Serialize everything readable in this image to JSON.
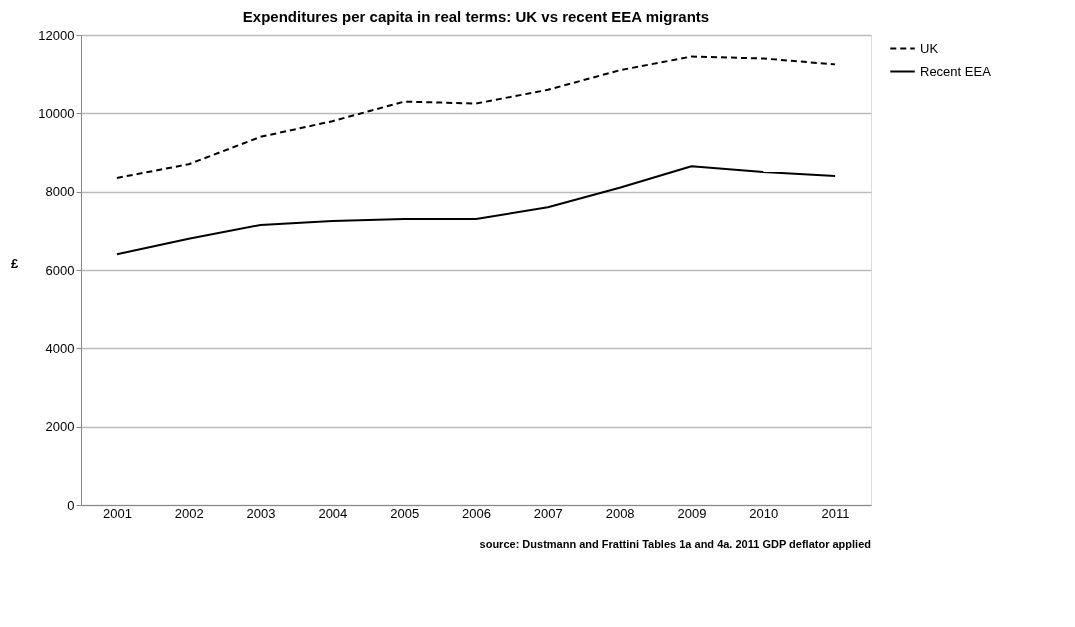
{
  "chart_data": {
    "type": "line",
    "title": "Expenditures per capita in real terms: UK vs recent EEA migrants",
    "ylabel": "£",
    "categories": [
      "2001",
      "2002",
      "2003",
      "2004",
      "2005",
      "2006",
      "2007",
      "2008",
      "2009",
      "2010",
      "2011"
    ],
    "series": [
      {
        "name": "UK",
        "color": "#000000",
        "line_style": "dashed",
        "values": [
          8350,
          8700,
          9400,
          9800,
          10300,
          10250,
          10600,
          11100,
          11450,
          11400,
          11250
        ]
      },
      {
        "name": "Recent EEA",
        "color": "#000000",
        "line_style": "solid",
        "values": [
          6400,
          6800,
          7150,
          7250,
          7300,
          7300,
          7600,
          8100,
          8650,
          8500,
          8400
        ]
      }
    ],
    "ylim": [
      0,
      12000
    ],
    "yticks": [
      0,
      2000,
      4000,
      6000,
      8000,
      10000,
      12000
    ],
    "grid": "y",
    "legend": "right",
    "marker": "none",
    "annotations": [
      "source: Dustmann and Frattini Tables 1a and 4a. 2011  GDP deflator applied"
    ]
  }
}
